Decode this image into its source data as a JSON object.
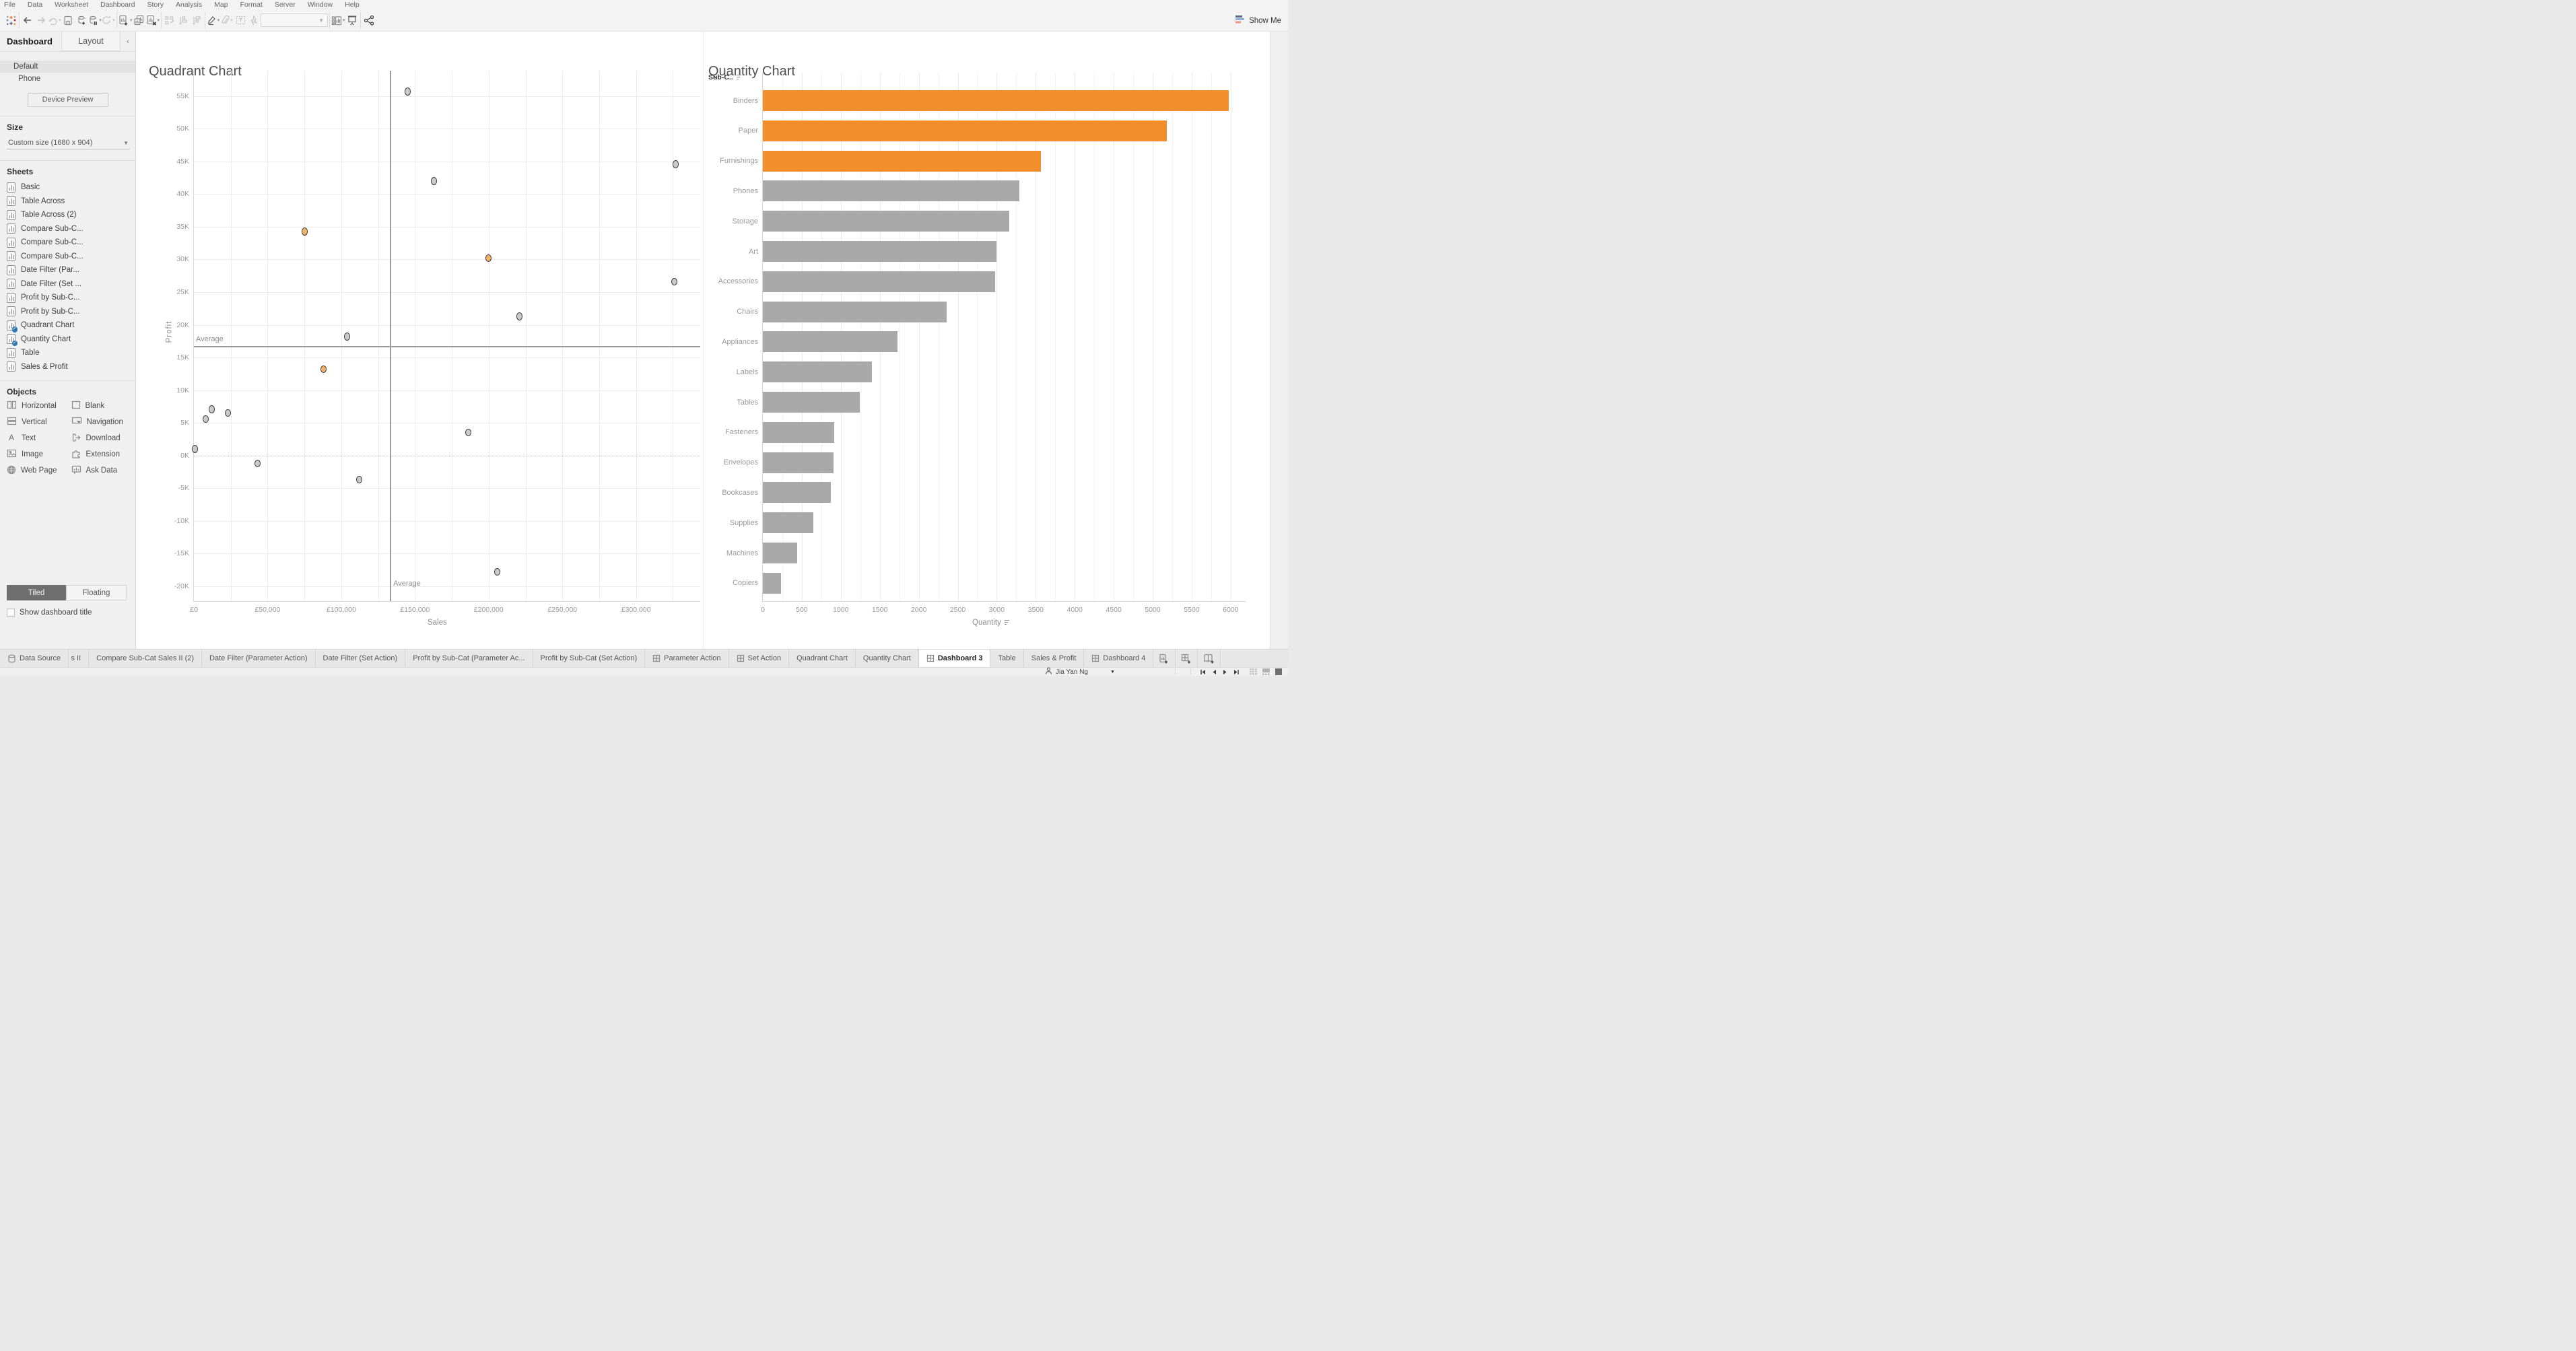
{
  "menu": {
    "items": [
      "File",
      "Data",
      "Worksheet",
      "Dashboard",
      "Story",
      "Analysis",
      "Map",
      "Format",
      "Server",
      "Window",
      "Help"
    ]
  },
  "toolbar": {
    "show_me_label": "Show Me",
    "fit_value": "",
    "buttons": [
      {
        "name": "tableau-logo",
        "dim": false,
        "caret": false
      },
      {
        "name": "sep"
      },
      {
        "name": "back",
        "dim": false,
        "caret": false
      },
      {
        "name": "forward",
        "dim": true,
        "caret": false
      },
      {
        "name": "redo",
        "dim": true,
        "caret": true
      },
      {
        "name": "save",
        "dim": false,
        "caret": false
      },
      {
        "name": "add-data",
        "dim": false,
        "caret": false
      },
      {
        "name": "pause",
        "dim": false,
        "caret": true
      },
      {
        "name": "refresh",
        "dim": true,
        "caret": true
      },
      {
        "name": "sep"
      },
      {
        "name": "new-worksheet",
        "dim": false,
        "caret": true
      },
      {
        "name": "duplicate",
        "dim": false,
        "caret": false
      },
      {
        "name": "clear-sheet",
        "dim": false,
        "caret": true
      },
      {
        "name": "sep"
      },
      {
        "name": "swap",
        "dim": true,
        "caret": false
      },
      {
        "name": "sort-asc",
        "dim": true,
        "caret": false
      },
      {
        "name": "sort-desc",
        "dim": true,
        "caret": false
      },
      {
        "name": "sep"
      },
      {
        "name": "highlight",
        "dim": false,
        "caret": true
      },
      {
        "name": "paperclip",
        "dim": true,
        "caret": true
      },
      {
        "name": "text-box",
        "dim": true,
        "caret": false
      },
      {
        "name": "pin",
        "dim": true,
        "caret": false
      },
      {
        "name": "fit-dropdown"
      },
      {
        "name": "sep"
      },
      {
        "name": "show-cards",
        "dim": false,
        "caret": true
      },
      {
        "name": "presentation",
        "dim": false,
        "caret": false
      },
      {
        "name": "sep"
      },
      {
        "name": "share",
        "dim": false,
        "caret": false
      }
    ]
  },
  "sidebar": {
    "tab_dashboard": "Dashboard",
    "tab_layout": "Layout",
    "collapse_glyph": "‹",
    "size_default": "Default",
    "size_phone": "Phone",
    "device_preview": "Device Preview",
    "size_title": "Size",
    "size_value": "Custom size (1680 x 904)",
    "sheets_title": "Sheets",
    "sheets": [
      {
        "label": "Basic",
        "used": false
      },
      {
        "label": "Table Across",
        "used": false
      },
      {
        "label": "Table Across (2)",
        "used": false
      },
      {
        "label": "Compare Sub-C...",
        "used": false
      },
      {
        "label": "Compare Sub-C...",
        "used": false
      },
      {
        "label": "Compare Sub-C...",
        "used": false
      },
      {
        "label": "Date Filter (Par...",
        "used": false
      },
      {
        "label": "Date Filter (Set ...",
        "used": false
      },
      {
        "label": "Profit by Sub-C...",
        "used": false
      },
      {
        "label": "Profit by Sub-C...",
        "used": false
      },
      {
        "label": "Quadrant Chart",
        "used": true
      },
      {
        "label": "Quantity Chart",
        "used": true
      },
      {
        "label": "Table",
        "used": false
      },
      {
        "label": "Sales & Profit",
        "used": false
      }
    ],
    "objects_title": "Objects",
    "objects": [
      {
        "label": "Horizontal",
        "icon": "horizontal"
      },
      {
        "label": "Blank",
        "icon": "blank"
      },
      {
        "label": "Vertical",
        "icon": "vertical"
      },
      {
        "label": "Navigation",
        "icon": "navigation"
      },
      {
        "label": "Text",
        "icon": "text"
      },
      {
        "label": "Download",
        "icon": "download"
      },
      {
        "label": "Image",
        "icon": "image"
      },
      {
        "label": "Extension",
        "icon": "extension"
      },
      {
        "label": "Web Page",
        "icon": "webpage"
      },
      {
        "label": "Ask Data",
        "icon": "askdata"
      }
    ],
    "tiled_label": "Tiled",
    "floating_label": "Floating",
    "show_title_label": "Show dashboard title"
  },
  "chart_data": [
    {
      "type": "scatter",
      "title": "Quadrant Chart",
      "xlabel": "Sales",
      "ylabel": "Profit",
      "xlim": [
        0,
        344000
      ],
      "ylim": [
        -22400,
        58900
      ],
      "x_ticks": [
        {
          "v": 0,
          "label": "£0"
        },
        {
          "v": 50000,
          "label": "£50,000"
        },
        {
          "v": 100000,
          "label": "£100,000"
        },
        {
          "v": 150000,
          "label": "£150,000"
        },
        {
          "v": 200000,
          "label": "£200,000"
        },
        {
          "v": 250000,
          "label": "£250,000"
        },
        {
          "v": 300000,
          "label": "£300,000"
        }
      ],
      "y_ticks": [
        {
          "v": 55000,
          "label": "55K"
        },
        {
          "v": 50000,
          "label": "50K"
        },
        {
          "v": 45000,
          "label": "45K"
        },
        {
          "v": 40000,
          "label": "40K"
        },
        {
          "v": 35000,
          "label": "35K"
        },
        {
          "v": 30000,
          "label": "30K"
        },
        {
          "v": 25000,
          "label": "25K"
        },
        {
          "v": 20000,
          "label": "20K"
        },
        {
          "v": 15000,
          "label": "15K"
        },
        {
          "v": 10000,
          "label": "10K"
        },
        {
          "v": 5000,
          "label": "5K"
        },
        {
          "v": 0,
          "label": "0K"
        },
        {
          "v": -5000,
          "label": "-5K"
        },
        {
          "v": -10000,
          "label": "-10K"
        },
        {
          "v": -15000,
          "label": "-15K"
        },
        {
          "v": -20000,
          "label": "-20K"
        }
      ],
      "grid_x_step": 25000,
      "avg_x": 133000,
      "avg_y": 16800,
      "avg_label": "Average",
      "points": [
        {
          "sales": 145000,
          "profit": 55700,
          "highlight": false
        },
        {
          "sales": 163000,
          "profit": 42000,
          "highlight": false
        },
        {
          "sales": 327000,
          "profit": 44600,
          "highlight": false
        },
        {
          "sales": 75000,
          "profit": 34300,
          "highlight": true
        },
        {
          "sales": 200000,
          "profit": 30200,
          "highlight": true
        },
        {
          "sales": 326000,
          "profit": 26600,
          "highlight": false
        },
        {
          "sales": 221000,
          "profit": 21300,
          "highlight": false
        },
        {
          "sales": 104000,
          "profit": 18200,
          "highlight": false
        },
        {
          "sales": 88000,
          "profit": 13200,
          "highlight": true
        },
        {
          "sales": 12000,
          "profit": 7100,
          "highlight": false
        },
        {
          "sales": 23000,
          "profit": 6500,
          "highlight": false
        },
        {
          "sales": 8000,
          "profit": 5600,
          "highlight": false
        },
        {
          "sales": 186000,
          "profit": 3500,
          "highlight": false
        },
        {
          "sales": 500,
          "profit": 1000,
          "highlight": false
        },
        {
          "sales": 43000,
          "profit": -1200,
          "highlight": false
        },
        {
          "sales": 112000,
          "profit": -3700,
          "highlight": false
        },
        {
          "sales": 206000,
          "profit": -17800,
          "highlight": false
        }
      ]
    },
    {
      "type": "bar",
      "title": "Quantity Chart",
      "col_header": "Sub-C..",
      "xlabel": "Quantity",
      "xlim": [
        0,
        6200
      ],
      "x_ticks": [
        0,
        500,
        1000,
        1500,
        2000,
        2500,
        3000,
        3500,
        4000,
        4500,
        5000,
        5500,
        6000
      ],
      "grid_step": 250,
      "categories": [
        "Binders",
        "Paper",
        "Furnishings",
        "Phones",
        "Storage",
        "Art",
        "Accessories",
        "Chairs",
        "Appliances",
        "Labels",
        "Tables",
        "Fasteners",
        "Envelopes",
        "Bookcases",
        "Supplies",
        "Machines",
        "Copiers"
      ],
      "values": [
        5974,
        5178,
        3563,
        3289,
        3158,
        3000,
        2976,
        2356,
        1729,
        1400,
        1241,
        914,
        906,
        868,
        647,
        440,
        234
      ],
      "highlighted": [
        true,
        true,
        true,
        false,
        false,
        false,
        false,
        false,
        false,
        false,
        false,
        false,
        false,
        false,
        false,
        false,
        false
      ]
    }
  ],
  "colors": {
    "bar_orange": "#f28e2b",
    "bar_gray": "#a9a9a9",
    "point_orange": "#f7b267",
    "point_gray": "#cacaca",
    "used_badge": "#2e79b5",
    "showme_bars": [
      "#5b6a8c",
      "#8cb3d9",
      "#f4977a"
    ]
  },
  "bottom_tabs": {
    "items": [
      {
        "label": "Data Source",
        "icon": "db",
        "active": false,
        "clipped": false
      },
      {
        "label": "s II",
        "icon": "",
        "active": false,
        "clipped": true
      },
      {
        "label": "Compare Sub-Cat Sales II (2)",
        "icon": "",
        "active": false,
        "clipped": false
      },
      {
        "label": "Date Filter (Parameter Action)",
        "icon": "",
        "active": false,
        "clipped": false
      },
      {
        "label": "Date Filter (Set Action)",
        "icon": "",
        "active": false,
        "clipped": false
      },
      {
        "label": "Profit by Sub-Cat (Parameter Ac...",
        "icon": "",
        "active": false,
        "clipped": false
      },
      {
        "label": "Profit by Sub-Cat (Set Action)",
        "icon": "",
        "active": false,
        "clipped": false
      },
      {
        "label": "Parameter Action",
        "icon": "grid",
        "active": false,
        "clipped": false
      },
      {
        "label": "Set Action",
        "icon": "grid",
        "active": false,
        "clipped": false
      },
      {
        "label": "Quadrant Chart",
        "icon": "",
        "active": false,
        "clipped": false
      },
      {
        "label": "Quantity Chart",
        "icon": "",
        "active": false,
        "clipped": false
      },
      {
        "label": "Dashboard 3",
        "icon": "grid",
        "active": true,
        "clipped": false
      },
      {
        "label": "Table",
        "icon": "",
        "active": false,
        "clipped": false
      },
      {
        "label": "Sales & Profit",
        "icon": "",
        "active": false,
        "clipped": false
      },
      {
        "label": "Dashboard 4",
        "icon": "grid",
        "active": false,
        "clipped": false
      }
    ],
    "new_buttons": [
      {
        "name": "new-worksheet-tab"
      },
      {
        "name": "new-dashboard-tab"
      },
      {
        "name": "new-story-tab"
      }
    ]
  },
  "status": {
    "user": "Jia Yan Ng"
  }
}
